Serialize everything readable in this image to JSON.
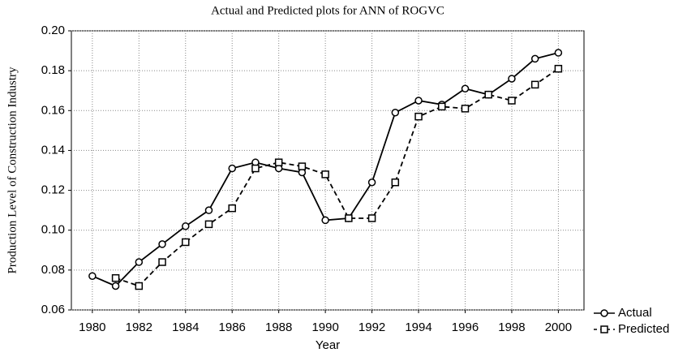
{
  "chart_data": {
    "type": "line",
    "title": "Actual and Predicted plots for ANN of ROGVC",
    "x_label": "Year",
    "y_label": "Production Level of Construction Industry",
    "x": [
      1980,
      1981,
      1982,
      1983,
      1984,
      1985,
      1986,
      1987,
      1988,
      1989,
      1990,
      1991,
      1992,
      1993,
      1994,
      1995,
      1996,
      1997,
      1998,
      1999,
      2000
    ],
    "series": [
      {
        "name": "Actual",
        "color": "#000000",
        "marker": "circle",
        "dashed": false,
        "values": [
          0.077,
          0.072,
          0.084,
          0.093,
          0.102,
          0.11,
          0.131,
          0.134,
          0.131,
          0.129,
          0.105,
          0.106,
          0.124,
          0.159,
          0.165,
          0.163,
          0.171,
          0.168,
          0.176,
          0.186,
          0.189
        ]
      },
      {
        "name": "Predicted",
        "color": "#000000",
        "marker": "square",
        "dashed": true,
        "values": [
          null,
          0.076,
          0.072,
          0.084,
          0.094,
          0.103,
          0.111,
          0.131,
          0.134,
          0.132,
          0.128,
          0.106,
          0.106,
          0.124,
          0.157,
          0.162,
          0.161,
          0.168,
          0.165,
          0.173,
          0.181
        ]
      }
    ],
    "xlim": [
      1979.1,
      2001.1
    ],
    "xticks": [
      1980,
      1982,
      1984,
      1986,
      1988,
      1990,
      1992,
      1994,
      1996,
      1998,
      2000
    ],
    "ylim": [
      0.06,
      0.2
    ],
    "yticks": [
      0.06,
      0.08,
      {
        "value": 0.1,
        "label": "0.10"
      },
      0.12,
      0.14,
      0.16,
      0.18,
      {
        "value": 0.2,
        "label": "0.20"
      }
    ],
    "grid": true,
    "legend": "lower right outside"
  }
}
